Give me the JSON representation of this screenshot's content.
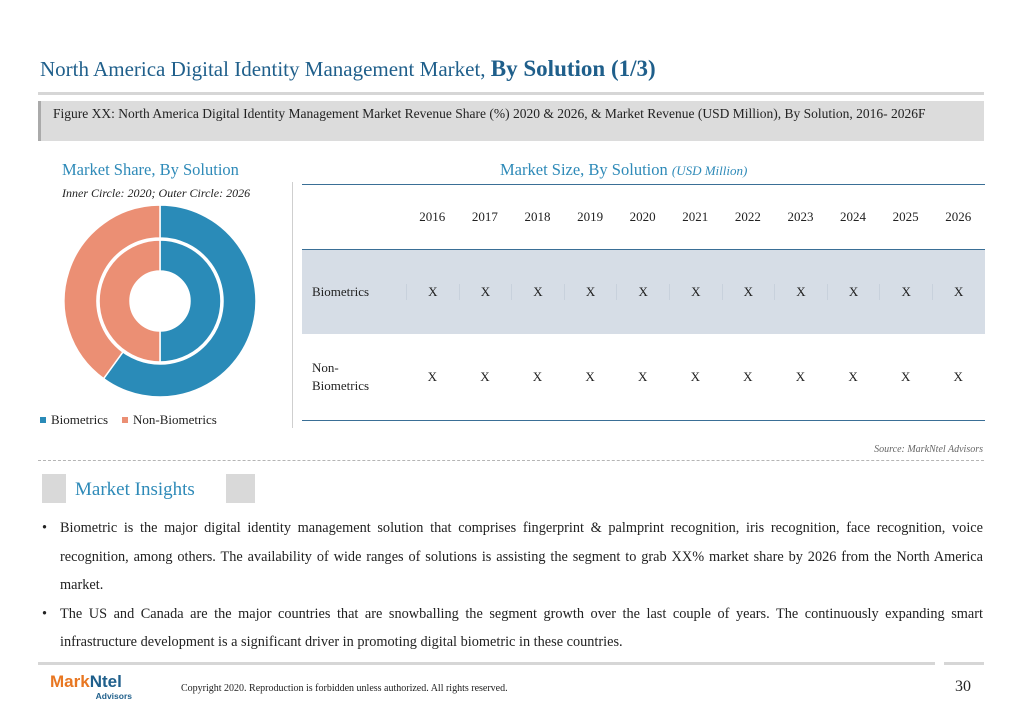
{
  "header": {
    "title_main": "North America Digital Identity Management Market,",
    "title_bold": "By Solution (1/3)"
  },
  "figure": {
    "caption": "Figure XX: North America Digital Identity Management Market Revenue Share (%) 2020 & 2026, & Market Revenue (USD Million), By Solution, 2016- 2026F"
  },
  "market_share": {
    "title": "Market Share, By Solution",
    "subtitle": "Inner Circle: 2020; Outer Circle: 2026"
  },
  "market_size": {
    "title": "Market Size, By Solution",
    "unit": "(USD Million)",
    "years": [
      "2016",
      "2017",
      "2018",
      "2019",
      "2020",
      "2021",
      "2022",
      "2023",
      "2024",
      "2025",
      "2026"
    ],
    "rows": [
      {
        "label": "Biometrics",
        "values": [
          "X",
          "X",
          "X",
          "X",
          "X",
          "X",
          "X",
          "X",
          "X",
          "X",
          "X"
        ]
      },
      {
        "label": "Non-\nBiometrics",
        "values": [
          "X",
          "X",
          "X",
          "X",
          "X",
          "X",
          "X",
          "X",
          "X",
          "X",
          "X"
        ]
      }
    ]
  },
  "chart_data": {
    "type": "pie",
    "variant": "donut",
    "series": [
      {
        "name": "2020",
        "ring": "inner",
        "values": [
          50,
          50
        ]
      },
      {
        "name": "2026",
        "ring": "outer",
        "values": [
          60,
          40
        ]
      }
    ],
    "categories": [
      "Biometrics",
      "Non-Biometrics"
    ],
    "colors": [
      "#2a8bb8",
      "#eb8f74"
    ],
    "legend_position": "bottom"
  },
  "source": "Source: MarkNtel Advisors",
  "insights": {
    "title": "Market Insights",
    "bullets": [
      "Biometric is the major digital identity management solution that comprises fingerprint & palmprint recognition, iris recognition, face recognition, voice recognition, among others. The availability of wide ranges of solutions is assisting the segment to grab XX% market share by 2026 from the North America market.",
      "The US and Canada are the major countries that are snowballing the segment growth over the last couple of years. The continuously expanding smart infrastructure development is a significant driver in promoting digital biometric in these countries."
    ],
    "bullet_glyph": "•"
  },
  "footer": {
    "logo_mark": "Mark",
    "logo_ntel": "Ntel",
    "logo_sub": "Advisors",
    "copyright": "Copyright 2020. Reproduction is forbidden unless authorized. All rights reserved.",
    "page": "30"
  }
}
